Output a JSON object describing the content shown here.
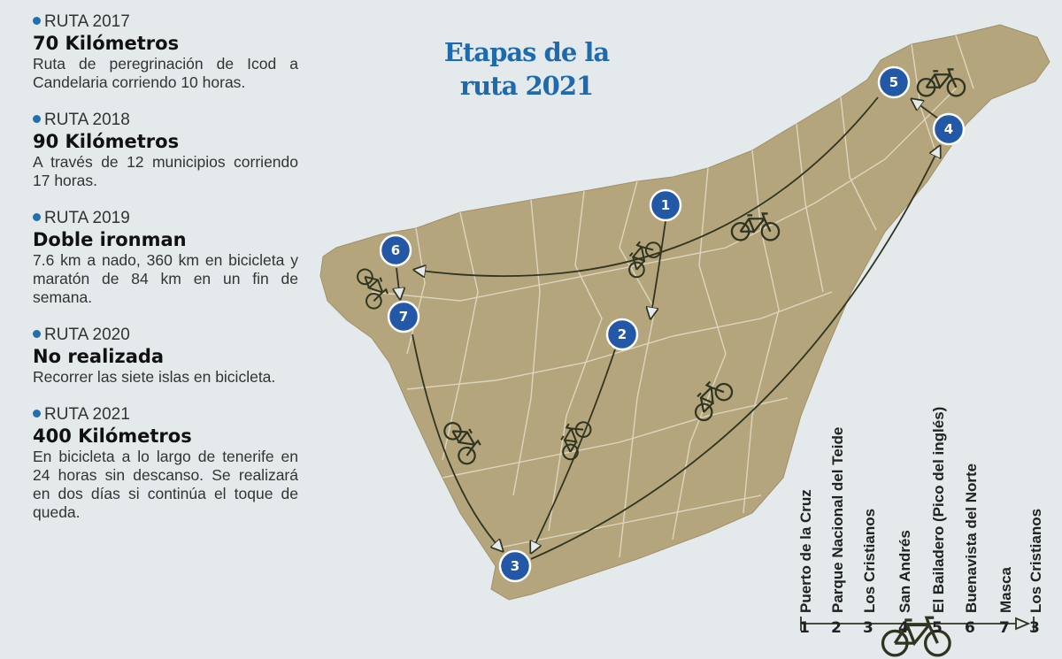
{
  "routes": [
    {
      "label": "RUTA 2017",
      "headline": "70 Kilómetros",
      "text": "Ruta de peregrinación de Icod a Candelaria corriendo 10 horas."
    },
    {
      "label": "RUTA 2018",
      "headline": "90 Kilómetros",
      "text": "A través de 12 municipios corriendo 17 horas."
    },
    {
      "label": "RUTA 2019",
      "headline": "Doble ironman",
      "text": "7.6 km a nado, 360 km en bicicleta y maratón de 84 km en un fin de semana."
    },
    {
      "label": "RUTA 2020",
      "headline": "No realizada",
      "text": "Recorrer las siete islas en bicicleta."
    },
    {
      "label": "RUTA 2021",
      "headline": "400 Kilómetros",
      "text": "En bicicleta a lo largo de tenerife en 24 horas sin descanso. Se realizará en dos días si continúa el toque de queda."
    }
  ],
  "map": {
    "title": "Etapas de la ruta 2021",
    "markers": [
      "1",
      "2",
      "3",
      "4",
      "5",
      "6",
      "7"
    ],
    "colors": {
      "background": "#e4e9eb",
      "island": "#b5a57c",
      "marker": "#2358a6",
      "title": "#1f6aad"
    }
  },
  "legend": {
    "stops": [
      {
        "num": "1",
        "name": "Puerto de la Cruz"
      },
      {
        "num": "2",
        "name": "Parque Nacional del Teide"
      },
      {
        "num": "3",
        "name": "Los Cristianos"
      },
      {
        "num": "4",
        "name": "San Andrés"
      },
      {
        "num": "5",
        "name": "El Bailadero (Pico del inglés)"
      },
      {
        "num": "6",
        "name": "Buenavista del Norte"
      },
      {
        "num": "7",
        "name": "Masca"
      },
      {
        "num": "3",
        "name": "Los Cristianos"
      }
    ],
    "icon": "bicycle-icon"
  }
}
